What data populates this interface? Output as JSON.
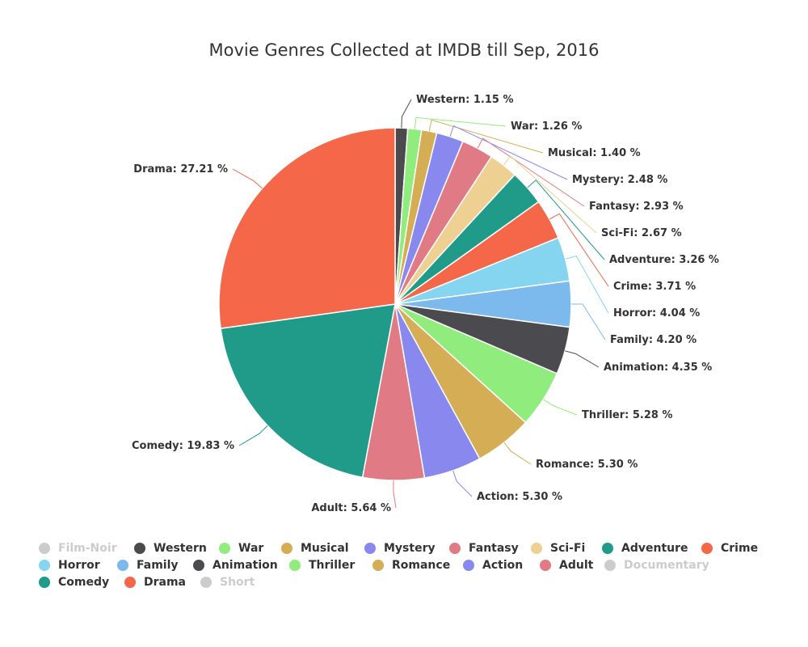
{
  "chart_data": {
    "type": "pie",
    "title": "Movie Genres Collected at IMDB till Sep, 2016",
    "slices": [
      {
        "name": "Western",
        "value": 1.15,
        "label": "Western: 1.15 %",
        "color": "#4a4a4f"
      },
      {
        "name": "War",
        "value": 1.26,
        "label": "War: 1.26 %",
        "color": "#90ed7d"
      },
      {
        "name": "Musical",
        "value": 1.4,
        "label": "Musical: 1.40 %",
        "color": "#d4ad54"
      },
      {
        "name": "Mystery",
        "value": 2.48,
        "label": "Mystery: 2.48 %",
        "color": "#8888ee"
      },
      {
        "name": "Fantasy",
        "value": 2.93,
        "label": "Fantasy: 2.93 %",
        "color": "#e07a85"
      },
      {
        "name": "Sci-Fi",
        "value": 2.67,
        "label": "Sci-Fi: 2.67 %",
        "color": "#eed092"
      },
      {
        "name": "Adventure",
        "value": 3.26,
        "label": "Adventure: 3.26 %",
        "color": "#209a89"
      },
      {
        "name": "Crime",
        "value": 3.71,
        "label": "Crime: 3.71 %",
        "color": "#f56749"
      },
      {
        "name": "Horror",
        "value": 4.04,
        "label": "Horror: 4.04 %",
        "color": "#85d5f0"
      },
      {
        "name": "Family",
        "value": 4.2,
        "label": "Family: 4.20 %",
        "color": "#7cb9ec"
      },
      {
        "name": "Animation",
        "value": 4.35,
        "label": "Animation: 4.35 %",
        "color": "#4a4a4f"
      },
      {
        "name": "Thriller",
        "value": 5.28,
        "label": "Thriller: 5.28 %",
        "color": "#90ed7d"
      },
      {
        "name": "Romance",
        "value": 5.3,
        "label": "Romance: 5.30 %",
        "color": "#d4ad54"
      },
      {
        "name": "Action",
        "value": 5.3,
        "label": "Action: 5.30 %",
        "color": "#8888ee"
      },
      {
        "name": "Adult",
        "value": 5.64,
        "label": "Adult: 5.64 %",
        "color": "#e07a85"
      },
      {
        "name": "Comedy",
        "value": 19.83,
        "label": "Comedy: 19.83 %",
        "color": "#209a89"
      },
      {
        "name": "Drama",
        "value": 27.21,
        "label": "Drama: 27.21 %",
        "color": "#f56749"
      }
    ],
    "legend": {
      "placement": "bottom",
      "items": [
        {
          "name": "Film-Noir",
          "color": "#cccccc",
          "hidden": true
        },
        {
          "name": "Western",
          "color": "#4a4a4f"
        },
        {
          "name": "War",
          "color": "#90ed7d"
        },
        {
          "name": "Musical",
          "color": "#d4ad54"
        },
        {
          "name": "Mystery",
          "color": "#8888ee"
        },
        {
          "name": "Fantasy",
          "color": "#e07a85"
        },
        {
          "name": "Sci-Fi",
          "color": "#eed092"
        },
        {
          "name": "Adventure",
          "color": "#209a89"
        },
        {
          "name": "Crime",
          "color": "#f56749"
        },
        {
          "name": "Horror",
          "color": "#85d5f0"
        },
        {
          "name": "Family",
          "color": "#7cb9ec"
        },
        {
          "name": "Animation",
          "color": "#4a4a4f"
        },
        {
          "name": "Thriller",
          "color": "#90ed7d"
        },
        {
          "name": "Romance",
          "color": "#d4ad54"
        },
        {
          "name": "Action",
          "color": "#8888ee"
        },
        {
          "name": "Adult",
          "color": "#e07a85"
        },
        {
          "name": "Documentary",
          "color": "#cccccc",
          "hidden": true
        },
        {
          "name": "Comedy",
          "color": "#209a89"
        },
        {
          "name": "Drama",
          "color": "#f56749"
        },
        {
          "name": "Short",
          "color": "#cccccc",
          "hidden": true
        }
      ]
    }
  }
}
